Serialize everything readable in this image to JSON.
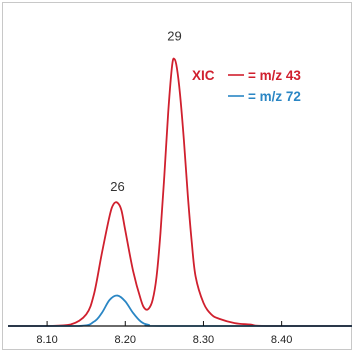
{
  "chart_data": {
    "type": "line",
    "title": "",
    "xlabel": "",
    "ylabel": "",
    "xlim": [
      8.05,
      8.49
    ],
    "ylim": [
      0,
      1.0
    ],
    "x_ticks": [
      8.1,
      8.2,
      8.3,
      8.4
    ],
    "x_tick_labels": [
      "8.10",
      "8.20",
      "8.30",
      "8.40"
    ],
    "grid": false,
    "legend": {
      "placement": "top-right",
      "prefix": "XIC",
      "items": [
        {
          "label": "= m/z 43",
          "color": "#d0202e"
        },
        {
          "label": "= m/z 72",
          "color": "#2a86c4"
        }
      ]
    },
    "annotations": [
      {
        "text": "26",
        "x": 8.19,
        "y": 0.465
      },
      {
        "text": "29",
        "x": 8.263,
        "y": 0.985
      }
    ],
    "series": [
      {
        "name": "= m/z 43",
        "color": "#d0202e",
        "x": [
          8.05,
          8.1,
          8.13,
          8.15,
          8.16,
          8.17,
          8.18,
          8.185,
          8.19,
          8.195,
          8.2,
          8.21,
          8.22,
          8.225,
          8.23,
          8.235,
          8.24,
          8.245,
          8.25,
          8.255,
          8.26,
          8.263,
          8.266,
          8.27,
          8.275,
          8.28,
          8.285,
          8.29,
          8.3,
          8.31,
          8.32,
          8.34,
          8.36,
          8.38,
          8.49
        ],
        "y": [
          0.0,
          0.0,
          0.005,
          0.04,
          0.11,
          0.25,
          0.38,
          0.42,
          0.425,
          0.4,
          0.33,
          0.19,
          0.09,
          0.06,
          0.06,
          0.09,
          0.17,
          0.32,
          0.52,
          0.74,
          0.9,
          0.92,
          0.89,
          0.8,
          0.64,
          0.45,
          0.29,
          0.17,
          0.08,
          0.04,
          0.025,
          0.01,
          0.005,
          0.0,
          0.0
        ]
      },
      {
        "name": "= m/z 72",
        "color": "#2a86c4",
        "x": [
          8.05,
          8.14,
          8.16,
          8.17,
          8.18,
          8.19,
          8.2,
          8.21,
          8.22,
          8.23,
          8.25,
          8.49
        ],
        "y": [
          0.0,
          0.0,
          0.015,
          0.045,
          0.09,
          0.105,
          0.085,
          0.045,
          0.015,
          0.004,
          0.0,
          0.0
        ]
      }
    ]
  }
}
